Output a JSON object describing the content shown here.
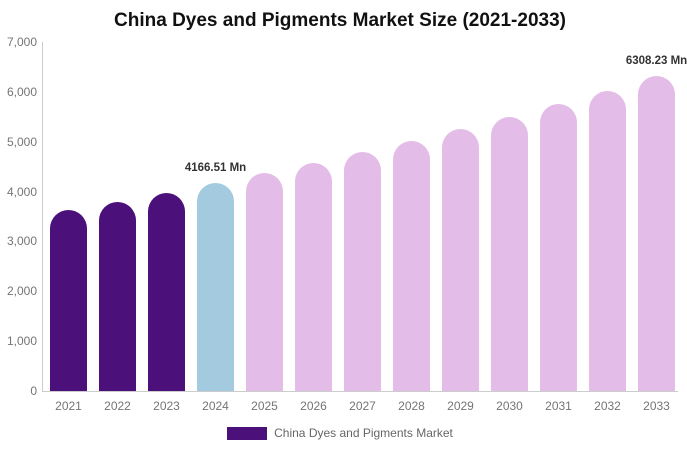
{
  "title": "China Dyes and Pigments Market Size (2021-2033)",
  "legend": {
    "label": "China Dyes and Pigments Market",
    "swatch_color": "#4B1079"
  },
  "colors": {
    "historical_bar": "#4B1079",
    "highlight_bar": "#A3CADF",
    "forecast_bar": "#E4BCE8",
    "axis_line": "#CCCCCC",
    "axis_label_text": "#757575",
    "title_text": "#111111",
    "data_label_text": "#333333",
    "legend_text": "#666666",
    "background": "#FFFFFF"
  },
  "chart_data": {
    "type": "bar",
    "title": "China Dyes and Pigments Market Size (2021-2033)",
    "xlabel": "",
    "ylabel": "",
    "unit": "Mn",
    "categories": [
      "2021",
      "2022",
      "2023",
      "2024",
      "2025",
      "2026",
      "2027",
      "2028",
      "2029",
      "2030",
      "2031",
      "2032",
      "2033"
    ],
    "values": [
      3628.2,
      3799.4,
      3978.8,
      4166.51,
      4363.1,
      4568.9,
      4784.5,
      5010.2,
      5246.6,
      5494.1,
      5753.3,
      6024.7,
      6308.23
    ],
    "colors": [
      "#4B1079",
      "#4B1079",
      "#4B1079",
      "#A3CADF",
      "#E4BCE8",
      "#E4BCE8",
      "#E4BCE8",
      "#E4BCE8",
      "#E4BCE8",
      "#E4BCE8",
      "#E4BCE8",
      "#E4BCE8",
      "#E4BCE8"
    ],
    "ylim": [
      0,
      7000
    ],
    "ytick_interval": 1000,
    "ytick_labels": [
      "0",
      "1,000",
      "2,000",
      "3,000",
      "4,000",
      "5,000",
      "6,000",
      "7,000"
    ],
    "grid": false,
    "legend_position": "bottom",
    "legend_entries": [
      "China Dyes and Pigments Market"
    ],
    "data_labels": [
      {
        "index": 3,
        "text": "4166.51 Mn"
      },
      {
        "index": 12,
        "text": "6308.23 Mn"
      }
    ]
  }
}
